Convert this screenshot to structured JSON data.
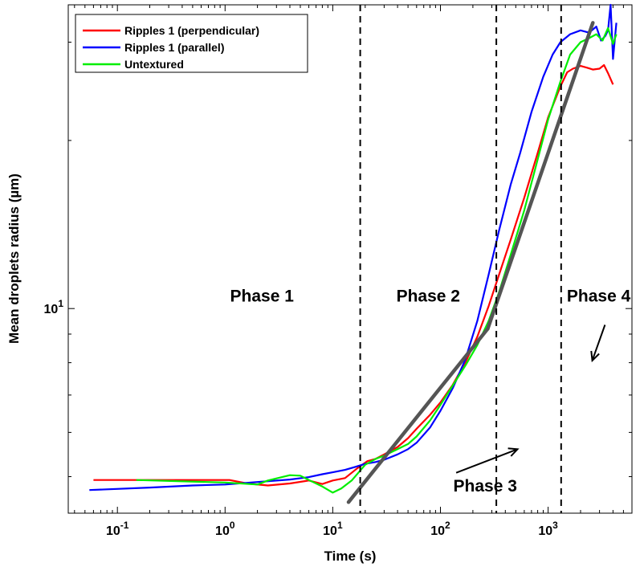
{
  "chart_data": {
    "type": "line",
    "xlabel": "Time (s)",
    "ylabel": "Mean droplets radius (µm)",
    "x_scale": "log",
    "y_scale": "log",
    "xlim": [
      0.035,
      6000
    ],
    "ylim": [
      4.3,
      35
    ],
    "x_ticks": [
      {
        "value": 0.1,
        "base": "10",
        "exp": "-1"
      },
      {
        "value": 1,
        "base": "10",
        "exp": "0"
      },
      {
        "value": 10,
        "base": "10",
        "exp": "1"
      },
      {
        "value": 100,
        "base": "10",
        "exp": "2"
      },
      {
        "value": 1000,
        "base": "10",
        "exp": "3"
      }
    ],
    "y_ticks": [
      {
        "value": 10,
        "base": "10",
        "exp": "1"
      }
    ],
    "y_minor_ticks": [
      5,
      6,
      7,
      8,
      9,
      20,
      30
    ],
    "legend_position": "top-left",
    "grid": false,
    "series": [
      {
        "name": "Ripples 1 (perpendicular)",
        "color": "#ff0000",
        "points": [
          [
            0.06,
            4.93
          ],
          [
            1.1,
            4.93
          ],
          [
            1.6,
            4.86
          ],
          [
            2.5,
            4.82
          ],
          [
            4,
            4.86
          ],
          [
            6,
            4.92
          ],
          [
            8,
            4.85
          ],
          [
            10,
            4.92
          ],
          [
            13,
            4.97
          ],
          [
            17,
            5.18
          ],
          [
            21,
            5.33
          ],
          [
            25,
            5.38
          ],
          [
            30,
            5.48
          ],
          [
            40,
            5.65
          ],
          [
            50,
            5.86
          ],
          [
            60,
            6.09
          ],
          [
            80,
            6.45
          ],
          [
            100,
            6.79
          ],
          [
            130,
            7.3
          ],
          [
            170,
            8.0
          ],
          [
            220,
            8.9
          ],
          [
            280,
            10.1
          ],
          [
            350,
            11.5
          ],
          [
            450,
            13.3
          ],
          [
            600,
            15.8
          ],
          [
            800,
            19.0
          ],
          [
            1000,
            22.0
          ],
          [
            1300,
            25.0
          ],
          [
            1500,
            26.5
          ],
          [
            1700,
            26.9
          ],
          [
            2000,
            27.2
          ],
          [
            2300,
            27.0
          ],
          [
            2600,
            26.8
          ],
          [
            3000,
            26.9
          ],
          [
            3300,
            27.3
          ],
          [
            3600,
            26.4
          ],
          [
            4000,
            25.2
          ]
        ]
      },
      {
        "name": "Ripples 1 (parallel)",
        "color": "#0000ff",
        "points": [
          [
            0.055,
            4.73
          ],
          [
            0.2,
            4.78
          ],
          [
            0.5,
            4.82
          ],
          [
            1,
            4.84
          ],
          [
            2,
            4.89
          ],
          [
            4,
            4.94
          ],
          [
            6,
            4.99
          ],
          [
            8,
            5.05
          ],
          [
            10,
            5.09
          ],
          [
            13,
            5.14
          ],
          [
            16,
            5.2
          ],
          [
            20,
            5.27
          ],
          [
            25,
            5.31
          ],
          [
            30,
            5.36
          ],
          [
            40,
            5.48
          ],
          [
            50,
            5.6
          ],
          [
            60,
            5.75
          ],
          [
            80,
            6.12
          ],
          [
            100,
            6.56
          ],
          [
            130,
            7.2
          ],
          [
            170,
            8.1
          ],
          [
            220,
            9.5
          ],
          [
            280,
            11.5
          ],
          [
            350,
            13.8
          ],
          [
            450,
            16.7
          ],
          [
            550,
            19.0
          ],
          [
            700,
            22.5
          ],
          [
            900,
            26.0
          ],
          [
            1100,
            28.5
          ],
          [
            1300,
            30.0
          ],
          [
            1600,
            31.0
          ],
          [
            2000,
            31.5
          ],
          [
            2400,
            31.2
          ],
          [
            2800,
            32.0
          ],
          [
            3100,
            30.2
          ],
          [
            3400,
            30.8
          ],
          [
            3600,
            31.5
          ],
          [
            3800,
            35.0
          ],
          [
            4000,
            28.0
          ],
          [
            4300,
            32.5
          ]
        ]
      },
      {
        "name": "Untextured",
        "color": "#00ee00",
        "points": [
          [
            0.15,
            4.93
          ],
          [
            1,
            4.88
          ],
          [
            2,
            4.84
          ],
          [
            2.5,
            4.92
          ],
          [
            4,
            5.03
          ],
          [
            5,
            5.02
          ],
          [
            6,
            4.93
          ],
          [
            8,
            4.8
          ],
          [
            10,
            4.68
          ],
          [
            12,
            4.76
          ],
          [
            15,
            4.92
          ],
          [
            20,
            5.25
          ],
          [
            25,
            5.38
          ],
          [
            30,
            5.45
          ],
          [
            40,
            5.6
          ],
          [
            50,
            5.72
          ],
          [
            60,
            5.9
          ],
          [
            80,
            6.3
          ],
          [
            100,
            6.72
          ],
          [
            130,
            7.28
          ],
          [
            170,
            7.9
          ],
          [
            220,
            8.6
          ],
          [
            280,
            9.5
          ],
          [
            350,
            10.7
          ],
          [
            450,
            12.5
          ],
          [
            600,
            15.0
          ],
          [
            800,
            18.5
          ],
          [
            1000,
            21.8
          ],
          [
            1300,
            25.5
          ],
          [
            1600,
            28.5
          ],
          [
            2000,
            30.0
          ],
          [
            2400,
            30.5
          ],
          [
            2800,
            31.0
          ],
          [
            3200,
            30.2
          ],
          [
            3600,
            31.8
          ],
          [
            4000,
            29.8
          ],
          [
            4300,
            31.0
          ]
        ]
      }
    ],
    "fit_lines": [
      {
        "color": "#555555",
        "x": [
          14,
          275
        ],
        "y": [
          4.5,
          9.2
        ]
      },
      {
        "color": "#555555",
        "x": [
          275,
          2600
        ],
        "y": [
          9.2,
          32.5
        ]
      }
    ],
    "vlines": [
      18,
      330,
      1320
    ],
    "annotations": [
      {
        "text": "Phase 1",
        "x": 2.2,
        "y": 10.3
      },
      {
        "text": "Phase 2",
        "x": 77,
        "y": 10.3
      },
      {
        "text": "Phase 4",
        "x": 2950,
        "y": 10.3
      },
      {
        "text": "Phase 3",
        "x": 260,
        "y": 4.7
      }
    ],
    "arrows": [
      {
        "from": [
          140,
          5.08
        ],
        "to": [
          520,
          5.6
        ]
      },
      {
        "from": [
          3370,
          9.35
        ],
        "to": [
          2570,
          8.07
        ]
      }
    ]
  }
}
